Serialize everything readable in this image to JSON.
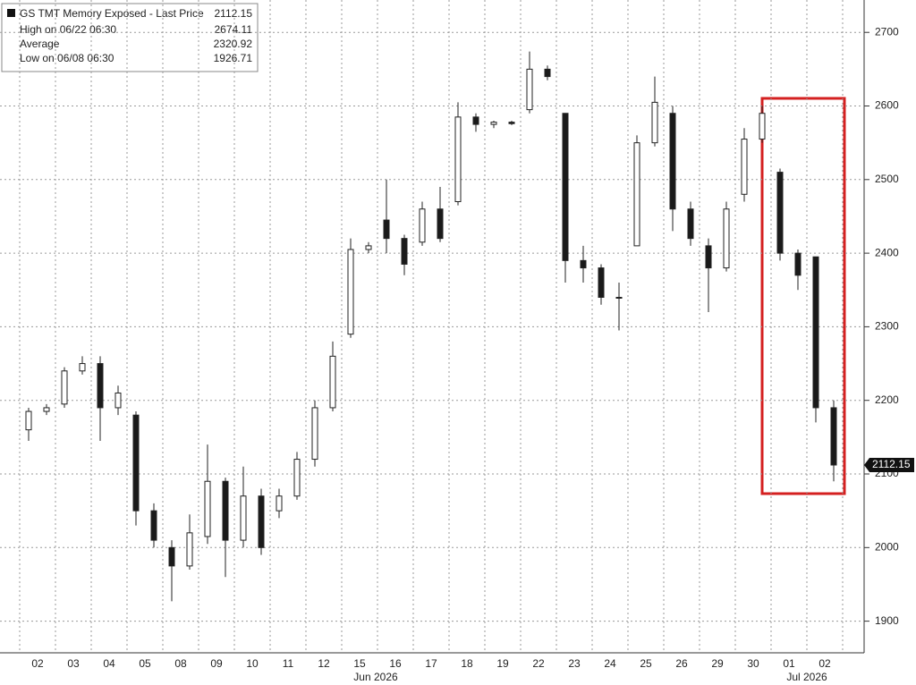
{
  "chart_data": {
    "type": "candlestick",
    "title": "GS TMT Memory Exposed - Last Price",
    "last_price": 2112.15,
    "stats": [
      {
        "label": "High on 06/22 06:30",
        "value": 2674.11
      },
      {
        "label": "Average",
        "value": 2320.92
      },
      {
        "label": "Low on 06/08 06:30",
        "value": 1926.71
      }
    ],
    "categories": [
      "02",
      null,
      "03",
      null,
      "04",
      null,
      "05",
      null,
      "08",
      null,
      "09",
      null,
      "10",
      null,
      "11",
      null,
      "12",
      null,
      "15",
      null,
      "16",
      null,
      "17",
      null,
      "18",
      null,
      "19",
      null,
      "22",
      null,
      "23",
      null,
      "24",
      null,
      "25",
      null,
      "26",
      null,
      "29",
      null,
      "30",
      null,
      "01",
      null,
      "02",
      null
    ],
    "month_labels": [
      "Jun 2026",
      "Jul 2026"
    ],
    "open": [
      2160,
      2185,
      2195,
      2240,
      2250,
      2190,
      2180,
      2050,
      2000,
      1975,
      2015,
      2090,
      2010,
      2070,
      2050,
      2070,
      2120,
      2190,
      2290,
      2405,
      2445,
      2420,
      2415,
      2460,
      2470,
      2585,
      2575,
      2578,
      2595,
      2650,
      2590,
      2390,
      2380,
      2340,
      2410,
      2550,
      2590,
      2460,
      2410,
      2380,
      2480,
      2555,
      2510,
      2400,
      2395,
      2190
    ],
    "high": [
      2190,
      2195,
      2245,
      2260,
      2260,
      2220,
      2185,
      2060,
      2010,
      2045,
      2140,
      2095,
      2110,
      2080,
      2080,
      2130,
      2200,
      2280,
      2420,
      2415,
      2500,
      2425,
      2470,
      2490,
      2605,
      2590,
      2580,
      2580,
      2674,
      2655,
      2590,
      2410,
      2385,
      2360,
      2560,
      2640,
      2600,
      2470,
      2420,
      2470,
      2570,
      2600,
      2515,
      2405,
      2395,
      2200
    ],
    "low": [
      2145,
      2180,
      2190,
      2235,
      2145,
      2180,
      2030,
      2000,
      1927,
      1970,
      2005,
      1960,
      2000,
      1990,
      2040,
      2065,
      2110,
      2185,
      2285,
      2400,
      2400,
      2370,
      2410,
      2415,
      2465,
      2565,
      2570,
      2574,
      2590,
      2635,
      2360,
      2360,
      2330,
      2295,
      2410,
      2545,
      2430,
      2410,
      2320,
      2375,
      2470,
      2550,
      2390,
      2350,
      2170,
      2090
    ],
    "close": [
      2185,
      2190,
      2240,
      2250,
      2190,
      2210,
      2050,
      2010,
      1975,
      2020,
      2090,
      2010,
      2070,
      2000,
      2070,
      2120,
      2190,
      2260,
      2405,
      2410,
      2420,
      2385,
      2460,
      2420,
      2585,
      2575,
      2578,
      2576,
      2650,
      2640,
      2390,
      2380,
      2340,
      2340,
      2550,
      2605,
      2460,
      2420,
      2380,
      2460,
      2555,
      2590,
      2400,
      2370,
      2190,
      2112.15
    ],
    "up_color": "#ffffff",
    "down_color": "#1a1a1a",
    "ylim": [
      1857,
      2744
    ],
    "yticks": [
      1900,
      2000,
      2100,
      2200,
      2300,
      2400,
      2500,
      2600,
      2700
    ],
    "grid": true
  }
}
